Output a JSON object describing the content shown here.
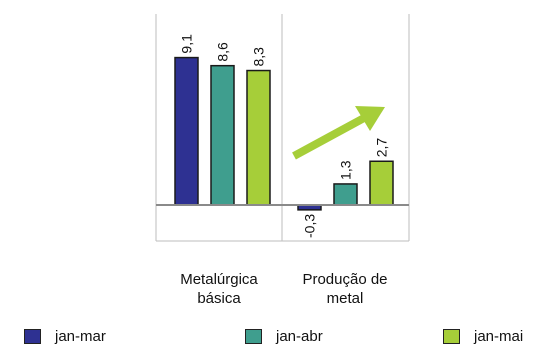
{
  "chart_data": {
    "type": "bar",
    "categories": [
      "Metalúrgica básica",
      "Produção de metal"
    ],
    "category_lines": [
      [
        "Metalúrgica",
        "básica"
      ],
      [
        "Produção de",
        "metal"
      ]
    ],
    "series": [
      {
        "name": "jan-mar",
        "color": "#2e3192",
        "values": [
          9.1,
          -0.3
        ],
        "labels": [
          "9,1",
          "-0,3"
        ]
      },
      {
        "name": "jan-abr",
        "color": "#3f9e8e",
        "values": [
          8.6,
          1.3
        ],
        "labels": [
          "8,6",
          "1,3"
        ]
      },
      {
        "name": "jan-mai",
        "color": "#a6ce39",
        "values": [
          8.3,
          2.7
        ],
        "labels": [
          "8,3",
          "2,7"
        ]
      }
    ],
    "grid": false,
    "legend_position": "bottom",
    "annotation": {
      "type": "arrow",
      "color": "#a6ce39",
      "direction": "up-right"
    }
  }
}
